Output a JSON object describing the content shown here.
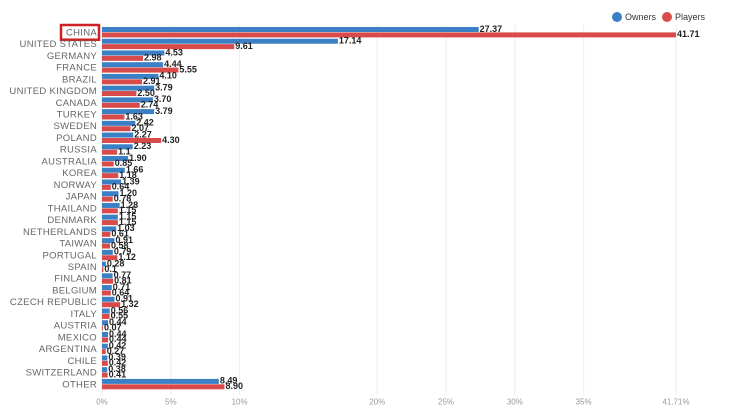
{
  "chart_data": {
    "type": "bar",
    "orientation": "horizontal",
    "categories": [
      "CHINA",
      "UNITED STATES",
      "GERMANY",
      "FRANCE",
      "BRAZIL",
      "UNITED KINGDOM",
      "CANADA",
      "TURKEY",
      "SWEDEN",
      "POLAND",
      "RUSSIA",
      "AUSTRALIA",
      "KOREA",
      "NORWAY",
      "JAPAN",
      "THAILAND",
      "DENMARK",
      "NETHERLANDS",
      "TAIWAN",
      "PORTUGAL",
      "SPAIN",
      "FINLAND",
      "BELGIUM",
      "CZECH REPUBLIC",
      "ITALY",
      "AUSTRIA",
      "MEXICO",
      "ARGENTINA",
      "CHILE",
      "SWITZERLAND",
      "OTHER"
    ],
    "series": [
      {
        "name": "Owners",
        "color": "#3b7fc4",
        "values": [
          27.37,
          17.14,
          4.53,
          4.44,
          4.1,
          3.79,
          3.7,
          3.79,
          2.42,
          2.27,
          2.23,
          1.9,
          1.66,
          1.39,
          1.2,
          1.28,
          1.15,
          1.03,
          0.91,
          0.79,
          0.28,
          0.77,
          0.71,
          0.91,
          0.56,
          0.44,
          0.44,
          0.42,
          0.39,
          0.38,
          8.49
        ]
      },
      {
        "name": "Players",
        "color": "#d94b4b",
        "values": [
          41.71,
          9.61,
          2.98,
          5.55,
          2.91,
          2.5,
          2.74,
          1.63,
          2.07,
          4.3,
          1.1,
          0.85,
          1.18,
          0.64,
          0.78,
          1.15,
          1.15,
          0.61,
          0.58,
          1.12,
          0.1,
          0.81,
          0.64,
          1.32,
          0.55,
          0.07,
          0.44,
          0.27,
          0.42,
          0.41,
          8.9
        ]
      }
    ],
    "value_labels": {
      "Owners": [
        "27.37",
        "17.14",
        "4.53",
        "4.44",
        "4.10",
        "3.79",
        "3.70",
        "3.79",
        "2.42",
        "2.27",
        "2.23",
        "1.90",
        "1.66",
        "1.39",
        "1.20",
        "1.28",
        "1.15",
        "1.03",
        "0.91",
        "0.79",
        "0.28",
        "0.77",
        "0.71",
        "0.91",
        "0.56",
        "0.44",
        "0.44",
        "0.42",
        "0.39",
        "0.38",
        "8.49"
      ],
      "Players": [
        "41.71",
        "9.61",
        "2.98",
        "5.55",
        "2.91",
        "2.50",
        "2.74",
        "1.63",
        "2.07",
        "4.30",
        "1.1",
        "0.85",
        "1.18",
        "0.64",
        "0.78",
        "1.15",
        "1.15",
        "0.61",
        "0.58",
        "1.12",
        "0.1",
        "0.81",
        "0.64",
        "1.32",
        "0.55",
        "0.07",
        "0.44",
        "0.27",
        "0.42",
        "0.41",
        "8.90"
      ]
    },
    "xticks": [
      0,
      5,
      10,
      20,
      25,
      30,
      35,
      41.71
    ],
    "xtick_labels": [
      "0%",
      "5%",
      "10%",
      "20%",
      "25%",
      "30%",
      "35%",
      "41.71%"
    ],
    "xlim": [
      0,
      41.71
    ],
    "grid": true,
    "legend_position": "top-right",
    "highlighted_category": "CHINA",
    "highlight_color": "#cc2222",
    "title": "",
    "xlabel": "",
    "ylabel": ""
  }
}
